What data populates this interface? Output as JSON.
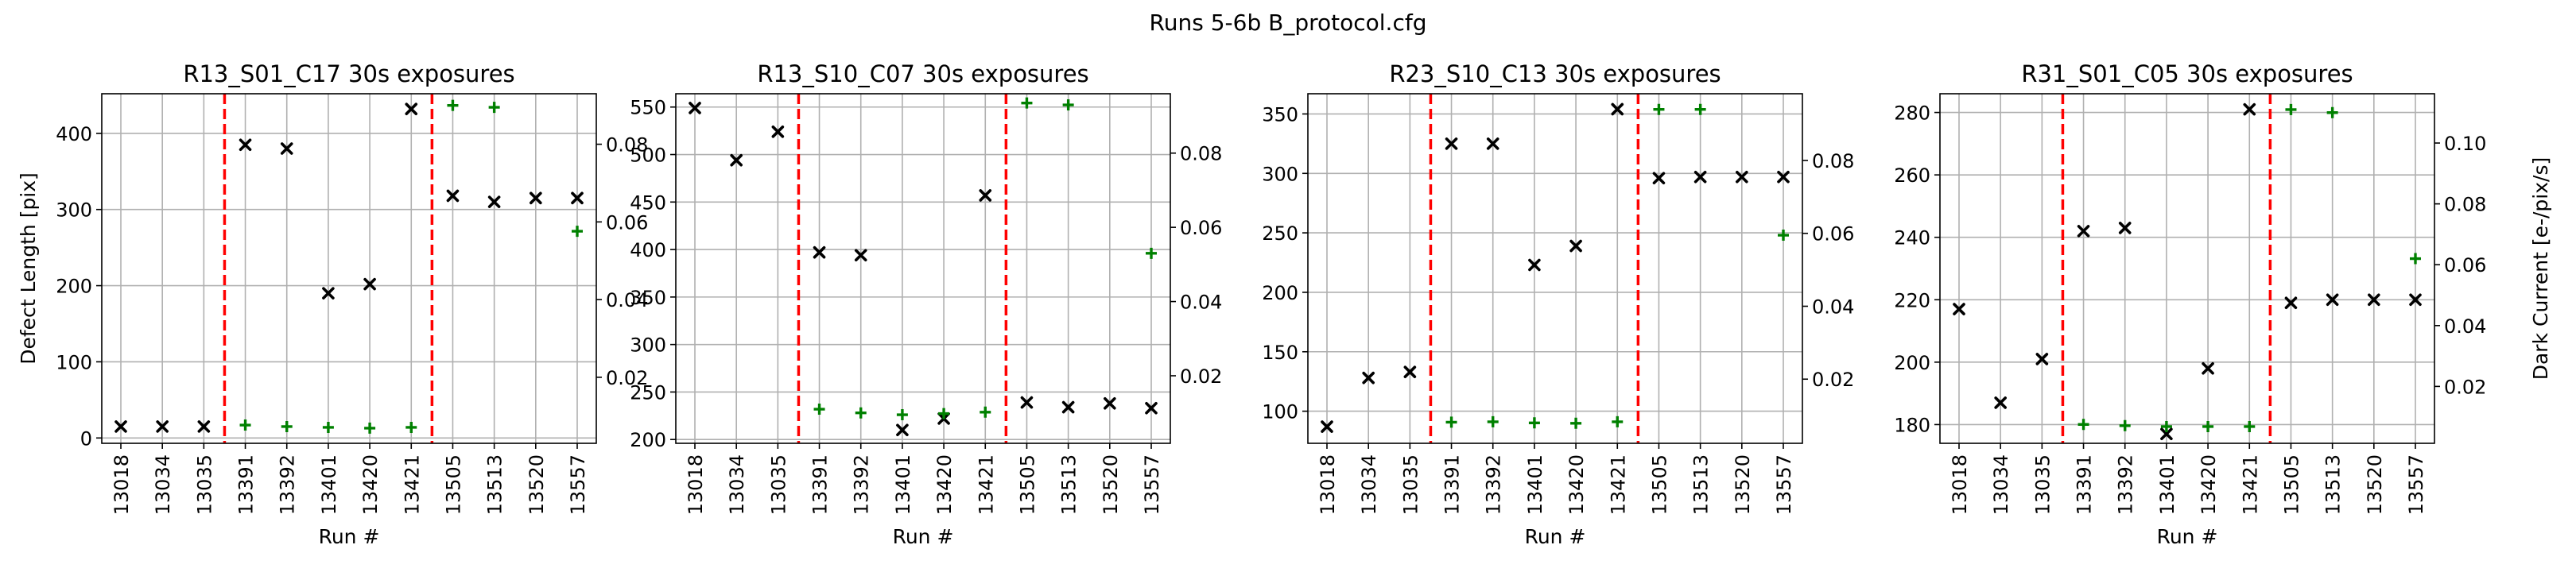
{
  "suptitle": "Runs 5-6b B_protocol.cfg",
  "colors": {
    "defect_marker": "#000000",
    "dark_marker": "#008000",
    "boundary_line": "#ff0000",
    "grid": "#b0b0b0"
  },
  "chart_data": [
    {
      "type": "scatter",
      "title": "R13_S01_C17 30s exposures",
      "xlabel": "Run #",
      "ylabel_left": "Defect Length [pix]",
      "ylabel_right": "",
      "categories": [
        "13018",
        "13034",
        "13035",
        "13391",
        "13392",
        "13401",
        "13420",
        "13421",
        "13505",
        "13513",
        "13520",
        "13557"
      ],
      "ylim_left": [
        -7,
        452
      ],
      "ylim_right": [
        0.003,
        0.093
      ],
      "yticks_left": [
        0,
        100,
        200,
        300,
        400
      ],
      "yticks_right": [
        0.02,
        0.04,
        0.06,
        0.08
      ],
      "boundary_lines_after_index": [
        2,
        7
      ],
      "series": [
        {
          "axis": "left",
          "marker": "x",
          "color": "#000000",
          "values": [
            15,
            15,
            15,
            385,
            380,
            190,
            202,
            432,
            318,
            310,
            315,
            315
          ]
        },
        {
          "axis": "right",
          "marker": "+",
          "color": "#008000",
          "values": [
            null,
            null,
            null,
            0.0077,
            0.0073,
            0.0071,
            0.0069,
            0.0071,
            0.09,
            0.0895,
            null,
            0.0576
          ]
        }
      ]
    },
    {
      "type": "scatter",
      "title": "R13_S10_C07 30s exposures",
      "xlabel": "Run #",
      "ylabel_left": "",
      "ylabel_right": "",
      "categories": [
        "13018",
        "13034",
        "13035",
        "13391",
        "13392",
        "13401",
        "13420",
        "13421",
        "13505",
        "13513",
        "13520",
        "13557"
      ],
      "ylim_left": [
        196,
        564
      ],
      "ylim_right": [
        0.0018,
        0.096
      ],
      "yticks_left": [
        200,
        250,
        300,
        350,
        400,
        450,
        500,
        550
      ],
      "yticks_right": [
        0.02,
        0.04,
        0.06,
        0.08
      ],
      "boundary_lines_after_index": [
        2,
        7
      ],
      "series": [
        {
          "axis": "left",
          "marker": "x",
          "color": "#000000",
          "values": [
            549,
            494,
            524,
            397,
            394,
            210,
            222,
            457,
            239,
            234,
            238,
            233
          ]
        },
        {
          "axis": "right",
          "marker": "+",
          "color": "#008000",
          "values": [
            null,
            null,
            null,
            0.011,
            0.01,
            0.0095,
            0.0098,
            0.0102,
            0.0935,
            0.093,
            null,
            0.053
          ]
        }
      ]
    },
    {
      "type": "scatter",
      "title": "R23_S10_C13 30s exposures",
      "xlabel": "Run #",
      "ylabel_left": "",
      "ylabel_right": "",
      "categories": [
        "13018",
        "13034",
        "13035",
        "13391",
        "13392",
        "13401",
        "13420",
        "13421",
        "13505",
        "13513",
        "13520",
        "13557"
      ],
      "ylim_left": [
        73,
        367
      ],
      "ylim_right": [
        0.0024,
        0.0983
      ],
      "yticks_left": [
        100,
        150,
        200,
        250,
        300,
        350
      ],
      "yticks_right": [
        0.02,
        0.04,
        0.06,
        0.08
      ],
      "boundary_lines_after_index": [
        2,
        7
      ],
      "series": [
        {
          "axis": "left",
          "marker": "x",
          "color": "#000000",
          "values": [
            87,
            128,
            133,
            325,
            325,
            223,
            239,
            354,
            296,
            297,
            297,
            297
          ]
        },
        {
          "axis": "right",
          "marker": "+",
          "color": "#008000",
          "values": [
            null,
            null,
            null,
            0.0082,
            0.0083,
            0.008,
            0.0079,
            0.0083,
            0.094,
            0.094,
            null,
            0.0595
          ]
        }
      ]
    },
    {
      "type": "scatter",
      "title": "R31_S01_C05 30s exposures",
      "xlabel": "Run #",
      "ylabel_left": "",
      "ylabel_right": "Dark Current [e-/pix/s]",
      "categories": [
        "13018",
        "13034",
        "13035",
        "13391",
        "13392",
        "13401",
        "13420",
        "13421",
        "13505",
        "13513",
        "13520",
        "13557"
      ],
      "ylim_left": [
        174,
        286
      ],
      "ylim_right": [
        0.0013,
        0.1162
      ],
      "yticks_left": [
        180,
        200,
        220,
        240,
        260,
        280
      ],
      "yticks_right": [
        0.02,
        0.04,
        0.06,
        0.08,
        0.1
      ],
      "boundary_lines_after_index": [
        2,
        7
      ],
      "series": [
        {
          "axis": "left",
          "marker": "x",
          "color": "#000000",
          "values": [
            217,
            187,
            201,
            242,
            243,
            177,
            198,
            281,
            219,
            220,
            220,
            220
          ]
        },
        {
          "axis": "right",
          "marker": "+",
          "color": "#008000",
          "values": [
            null,
            null,
            null,
            0.0075,
            0.0071,
            0.0068,
            0.0068,
            0.0068,
            0.111,
            0.11,
            null,
            0.062
          ]
        }
      ]
    }
  ]
}
